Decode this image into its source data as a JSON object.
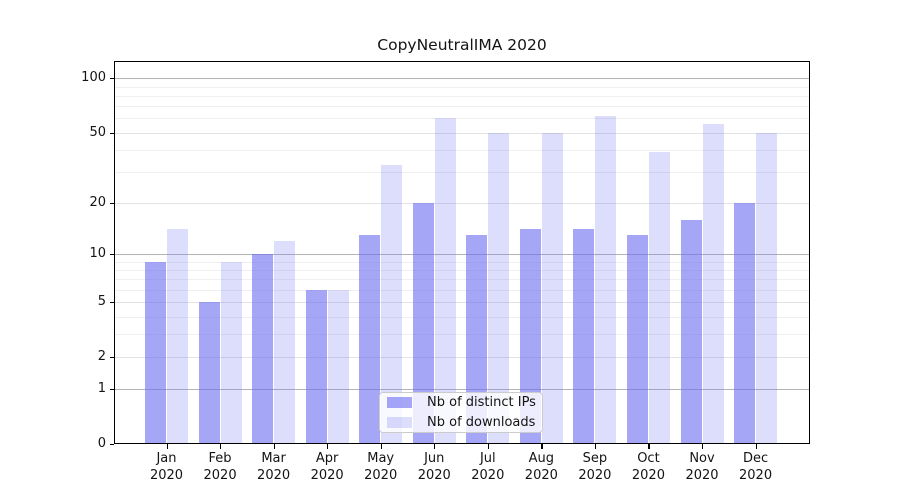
{
  "figure": {
    "title": "CopyNeutralIMA 2020"
  },
  "chart_data": {
    "type": "bar",
    "title": "CopyNeutralIMA 2020",
    "x_months": [
      "Jan",
      "Feb",
      "Mar",
      "Apr",
      "May",
      "Jun",
      "Jul",
      "Aug",
      "Sep",
      "Oct",
      "Nov",
      "Dec"
    ],
    "x_year": "2020",
    "categories": [
      "Jan 2020",
      "Feb 2020",
      "Mar 2020",
      "Apr 2020",
      "May 2020",
      "Jun 2020",
      "Jul 2020",
      "Aug 2020",
      "Sep 2020",
      "Oct 2020",
      "Nov 2020",
      "Dec 2020"
    ],
    "series": [
      {
        "name": "Nb of distinct IPs",
        "color": "rgba(112,112,242,0.62)",
        "values": [
          9,
          5,
          10,
          6,
          13,
          20,
          13,
          14,
          14,
          13,
          16,
          20
        ]
      },
      {
        "name": "Nb of downloads",
        "color": "rgba(112,112,242,0.24)",
        "values": [
          14,
          9,
          12,
          6,
          33,
          60,
          50,
          50,
          62,
          39,
          56,
          50
        ]
      }
    ],
    "y_scale": "log1p",
    "y_tick_labels": [
      100,
      50,
      20,
      10,
      5,
      2,
      1,
      0
    ],
    "y_minor_gridlines": [
      3,
      4,
      6,
      7,
      8,
      9,
      30,
      40,
      60,
      70,
      80,
      90
    ],
    "y_major_gridlines_light": [
      2,
      5,
      20,
      50
    ],
    "y_major_gridlines_dark": [
      1,
      10,
      100
    ],
    "ylim": [
      0,
      126
    ],
    "grid": true,
    "legend_position": "lower-center"
  },
  "colors": {
    "background": "#ffffff",
    "spine": "#000000",
    "grid_minor": "#efefef",
    "grid_major_light": "#e3e3e3",
    "grid_major_dark": "#b4b4b4",
    "text": "#141414",
    "legend_border": "#cccccc",
    "legend_background": "rgba(255,255,255,0.8)"
  }
}
